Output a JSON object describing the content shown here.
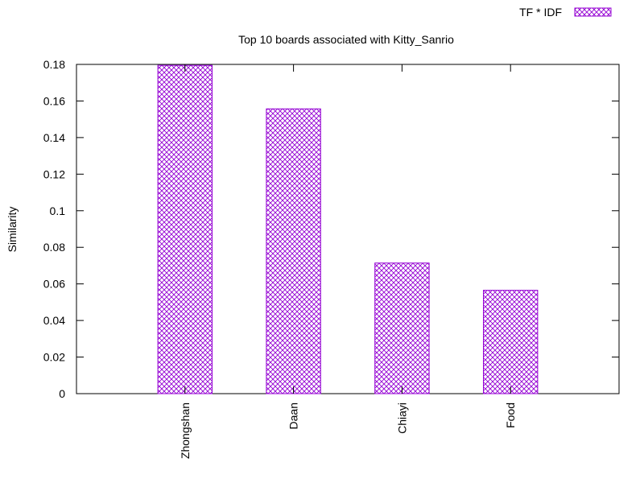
{
  "chart_data": {
    "type": "bar",
    "title": "Top 10 boards associated with Kitty_Sanrio",
    "xlabel": "",
    "ylabel": "Similarity",
    "categories": [
      "Zhongshan",
      "Daan",
      "Chiayi",
      "Food"
    ],
    "series": [
      {
        "name": "TF * IDF",
        "values": [
          0.1795,
          0.1557,
          0.0714,
          0.0565
        ]
      }
    ],
    "ylim": [
      0,
      0.18
    ],
    "yticks": [
      "0",
      "0.02",
      "0.04",
      "0.06",
      "0.08",
      "0.1",
      "0.12",
      "0.14",
      "0.16",
      "0.18"
    ],
    "grid": false,
    "legend_position": "top-right",
    "colors": {
      "bar": "#9400d3",
      "axis": "#000000"
    }
  }
}
